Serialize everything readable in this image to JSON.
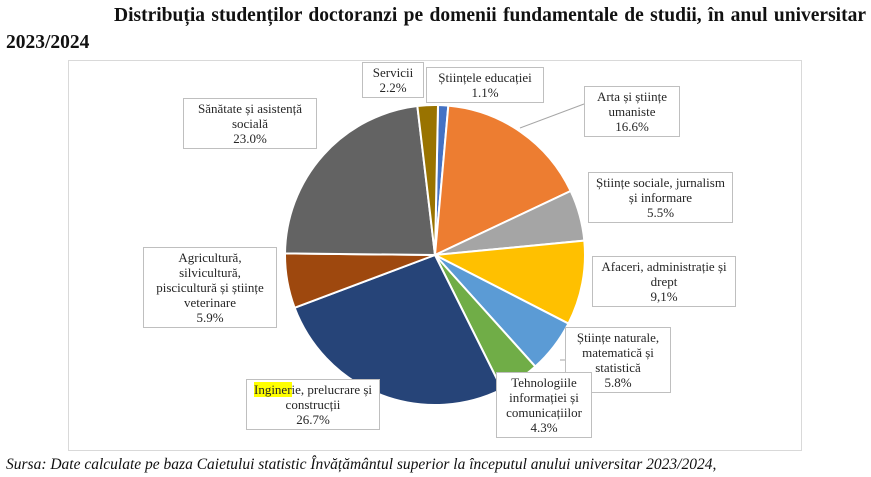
{
  "title": "Distribuția studenților doctoranzi pe domenii fundamentale de studii, în anul universitar 2023/2024",
  "source": "Sursa: Date calculate pe baza Caietului statistic Învățământul superior la începutul anului universitar 2023/2024,",
  "chart_data": {
    "type": "pie",
    "title": "",
    "slices": [
      {
        "name": "Științele educației",
        "value": 1.1,
        "display": "1.1%",
        "color": "#4472C4"
      },
      {
        "name": "Arta și științe umaniste",
        "value": 16.6,
        "display": "16.6%",
        "color": "#ED7D31"
      },
      {
        "name": "Științe sociale, jurnalism și informare",
        "value": 5.5,
        "display": "5.5%",
        "color": "#A5A5A5"
      },
      {
        "name": "Afaceri, administrație și drept",
        "value": 9.1,
        "display": "9,1%",
        "color": "#FFC000"
      },
      {
        "name": "Științe naturale, matematică și statistică",
        "value": 5.8,
        "display": "5.8%",
        "color": "#5B9BD5"
      },
      {
        "name": "Tehnologiile informației și comunicațiilor",
        "value": 4.3,
        "display": "4.3%",
        "color": "#70AD47"
      },
      {
        "name": "Inginerie, prelucrare și construcții",
        "value": 26.7,
        "display": "26.7%",
        "color": "#264478"
      },
      {
        "name": "Agricultură, silvicultură, piscicultură și științe veterinare",
        "value": 5.9,
        "display": "5.9%",
        "color": "#9E480E"
      },
      {
        "name": "Sănătate și asistență socială",
        "value": 23.0,
        "display": "23.0%",
        "color": "#636363"
      },
      {
        "name": "Servicii",
        "value": 2.2,
        "display": "2.2%",
        "color": "#997300"
      }
    ],
    "highlighted_text": "Inginer"
  }
}
